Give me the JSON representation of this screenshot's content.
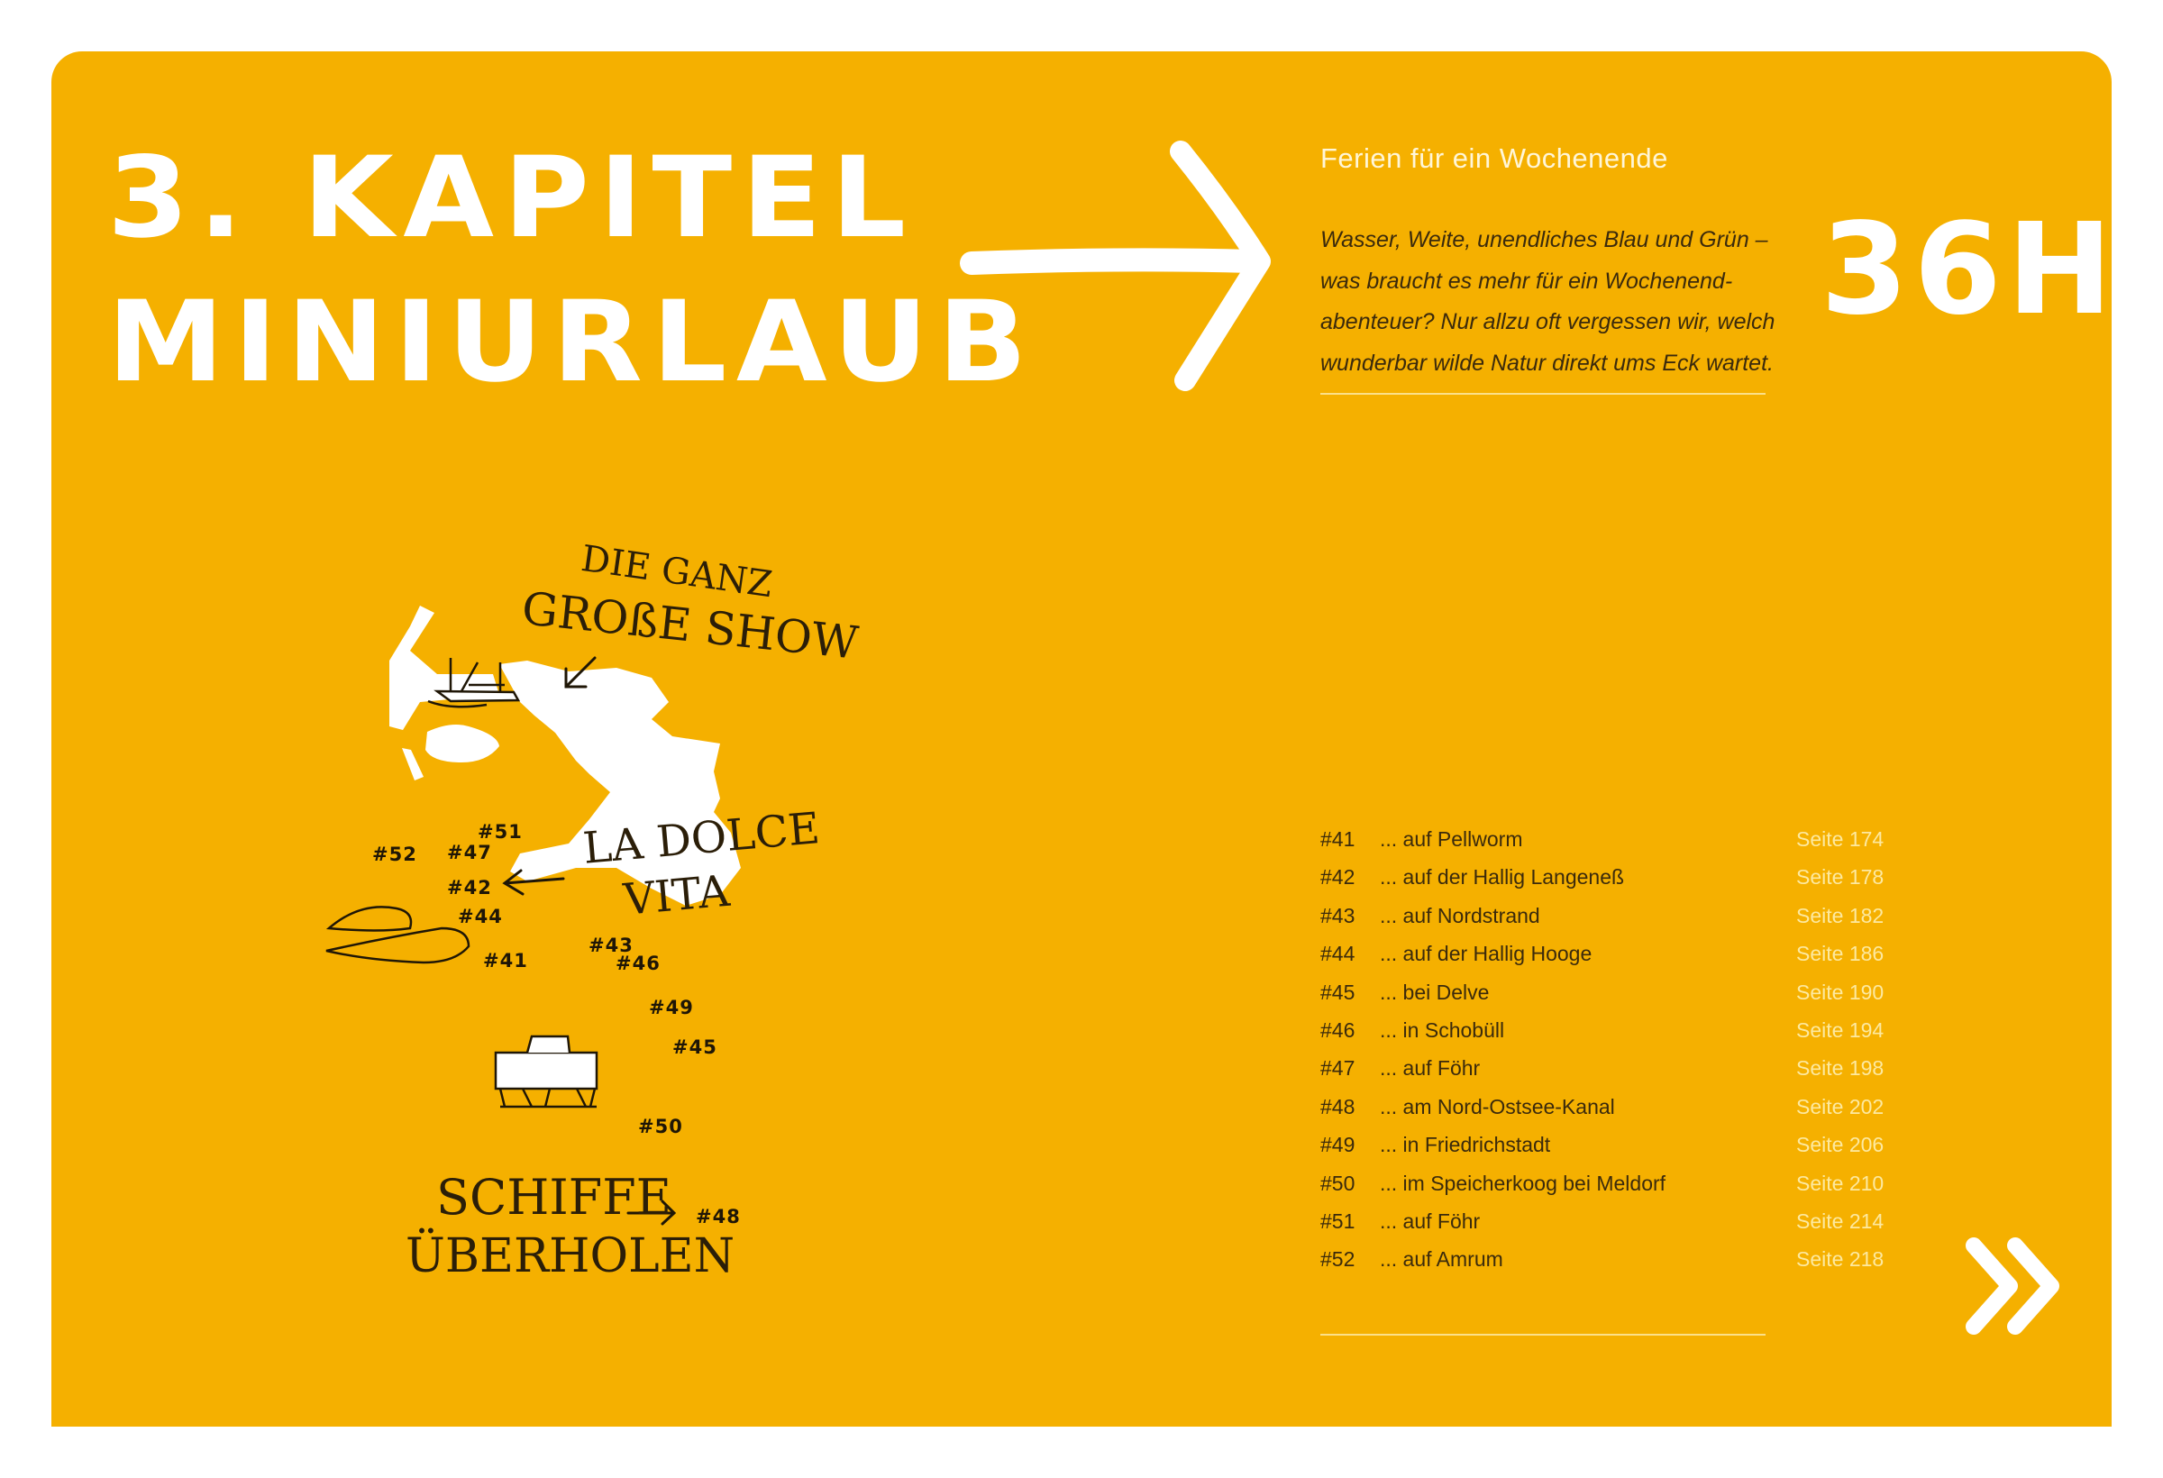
{
  "chapter": {
    "title_line1": "3. KAPITEL",
    "title_line2": "MINIURLAUB",
    "subtitle": "Ferien für ein Wochenende",
    "intro_lines": [
      "Wasser, Weite, unendliches Blau und Grün –",
      "was braucht es mehr für ein Wochenend-",
      "abenteuer? Nur allzu oft vergessen wir, welch",
      "wunderbar wilde Natur direkt ums Eck wartet."
    ],
    "duration": "36H"
  },
  "map": {
    "labels": {
      "show_line1": "DIE GANZ",
      "show_line2": "GROßE SHOW",
      "dolce_line1": "LA DOLCE",
      "dolce_line2": "VITA",
      "ships_line1": "SCHIFFE",
      "ships_line2": "ÜBERHOLEN"
    },
    "markers": [
      "#52",
      "#51",
      "#47",
      "#42",
      "#44",
      "#41",
      "#43",
      "#46",
      "#49",
      "#45",
      "#50",
      "#48"
    ]
  },
  "entries": [
    {
      "num": "#41",
      "text": "... auf Pellworm",
      "page": "Seite 174"
    },
    {
      "num": "#42",
      "text": "... auf der Hallig Langeneß",
      "page": "Seite 178"
    },
    {
      "num": "#43",
      "text": "... auf Nordstrand",
      "page": "Seite 182"
    },
    {
      "num": "#44",
      "text": "... auf der Hallig Hooge",
      "page": "Seite 186"
    },
    {
      "num": "#45",
      "text": "... bei Delve",
      "page": "Seite 190"
    },
    {
      "num": "#46",
      "text": "... in Schobüll",
      "page": "Seite 194"
    },
    {
      "num": "#47",
      "text": "... auf Föhr",
      "page": "Seite 198"
    },
    {
      "num": "#48",
      "text": "... am Nord-Ostsee-Kanal",
      "page": "Seite 202"
    },
    {
      "num": "#49",
      "text": "... in Friedrichstadt",
      "page": "Seite 206"
    },
    {
      "num": "#50",
      "text": "... im Speicherkoog bei Meldorf",
      "page": "Seite 210"
    },
    {
      "num": "#51",
      "text": "... auf Föhr",
      "page": "Seite 214"
    },
    {
      "num": "#52",
      "text": "... auf Amrum",
      "page": "Seite 218"
    }
  ],
  "colors": {
    "background": "#f5b000",
    "text_dark": "#3b2a0c",
    "accent_light": "#fde9a0",
    "white": "#ffffff"
  },
  "icons": {
    "arrow": "arrow-right-icon",
    "next": "double-chevron-right-icon"
  }
}
